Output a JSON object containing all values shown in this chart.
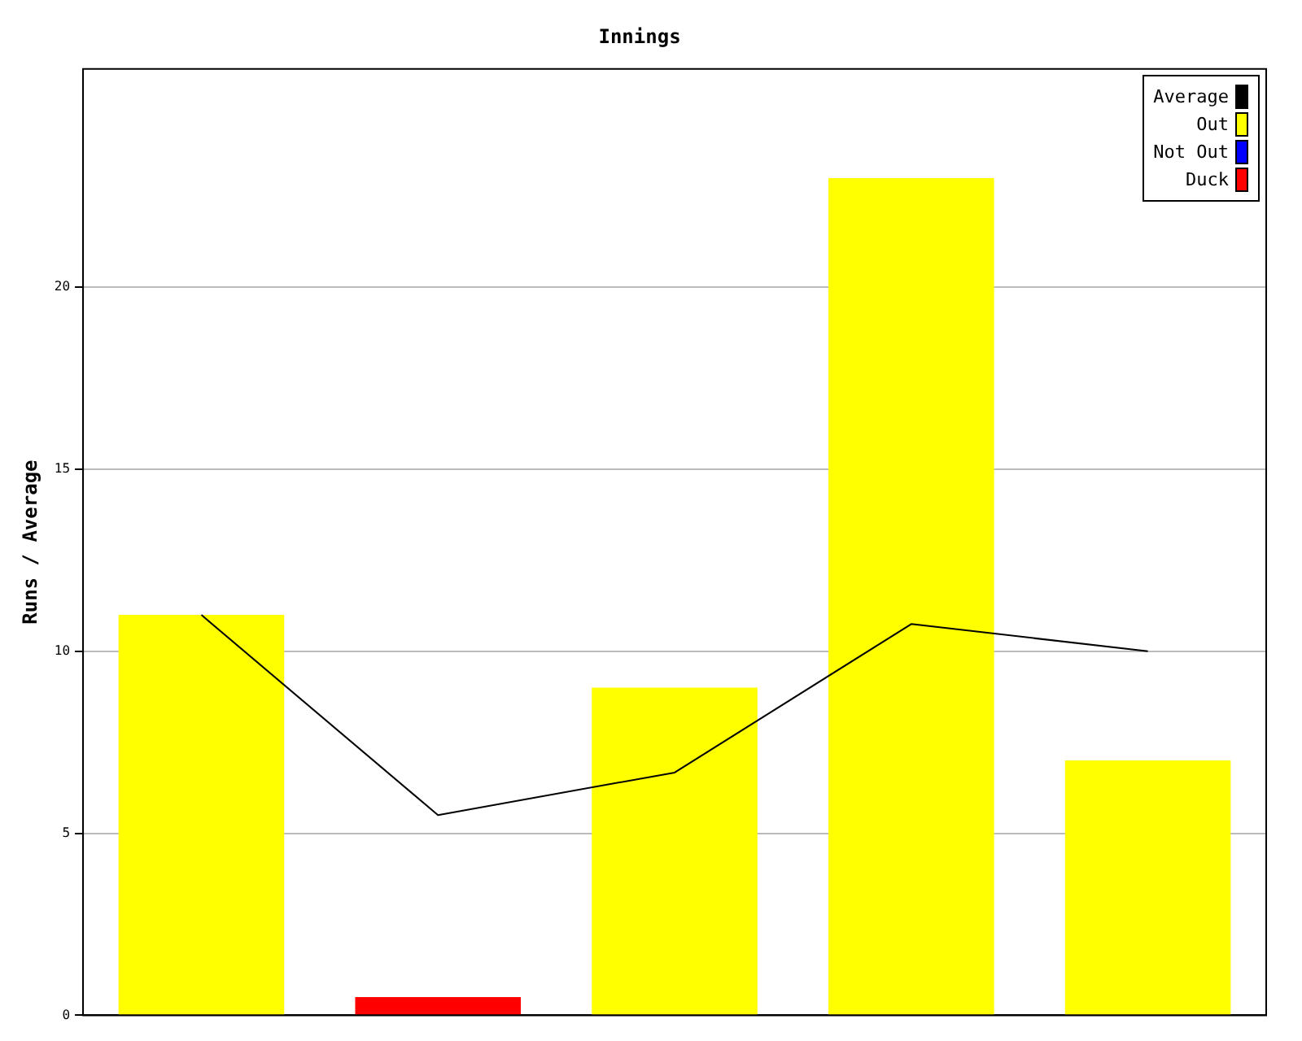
{
  "chart_data": {
    "type": "bar",
    "title": "Innings",
    "ylabel": "Runs / Average",
    "categories": [
      null,
      null,
      null,
      null,
      null
    ],
    "series": [
      {
        "name": "Average",
        "type": "line",
        "color": "#000000",
        "values": [
          11,
          5.5,
          6.67,
          10.75,
          10
        ]
      },
      {
        "name": "Out",
        "color": "#ffff00",
        "values": [
          11,
          null,
          9,
          23,
          7
        ]
      },
      {
        "name": "Not Out",
        "color": "#0000ff",
        "values": [
          null,
          null,
          null,
          null,
          null
        ]
      },
      {
        "name": "Duck",
        "color": "#ff0000",
        "values": [
          null,
          0.5,
          null,
          null,
          null
        ]
      }
    ],
    "stacked": true,
    "ylim": [
      0,
      26
    ],
    "yticks": [
      0,
      5,
      10,
      15,
      20
    ],
    "grid": "y",
    "legend": "top right",
    "tick_labels": "y",
    "marker": "none"
  }
}
